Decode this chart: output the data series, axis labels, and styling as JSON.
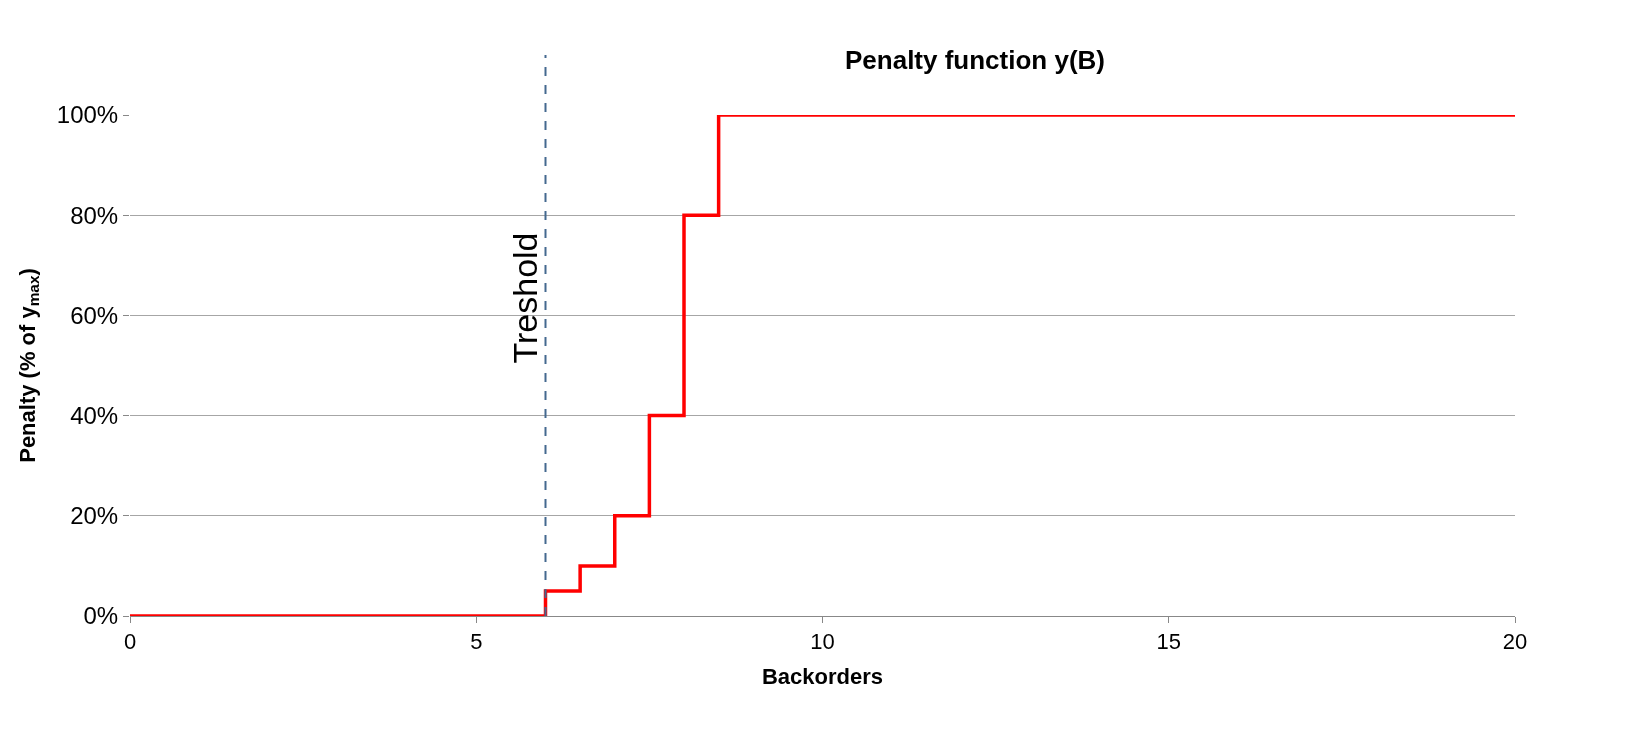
{
  "chart_data": {
    "type": "step",
    "title": "Penalty function y(B)",
    "xlabel": "Backorders",
    "ylabel": "Penalty (% of y$_{max}$)",
    "x": [
      0,
      6,
      6.5,
      7,
      7.5,
      8,
      8.5,
      20
    ],
    "series": [
      {
        "color": "#ff0000",
        "values": [
          0,
          5,
          10,
          20,
          40,
          80,
          100,
          100
        ]
      }
    ],
    "xlim": [
      0,
      20
    ],
    "xticks": [
      0,
      5,
      10,
      15,
      20
    ],
    "ylim": [
      0,
      100
    ],
    "yticks": [
      {
        "value": 0,
        "label": "0%"
      },
      {
        "value": 20,
        "label": "20%"
      },
      {
        "value": 40,
        "label": "40%"
      },
      {
        "value": 60,
        "label": "60%"
      },
      {
        "value": 80,
        "label": "80%"
      },
      {
        "value": 100,
        "label": "100%"
      }
    ],
    "ref_lines": [
      {
        "axis": "x",
        "value": 6,
        "label": "Treshold",
        "color": "#44698f",
        "line_style": "dashed"
      }
    ],
    "grid": "y",
    "marker": "none",
    "line_style": "solid"
  }
}
